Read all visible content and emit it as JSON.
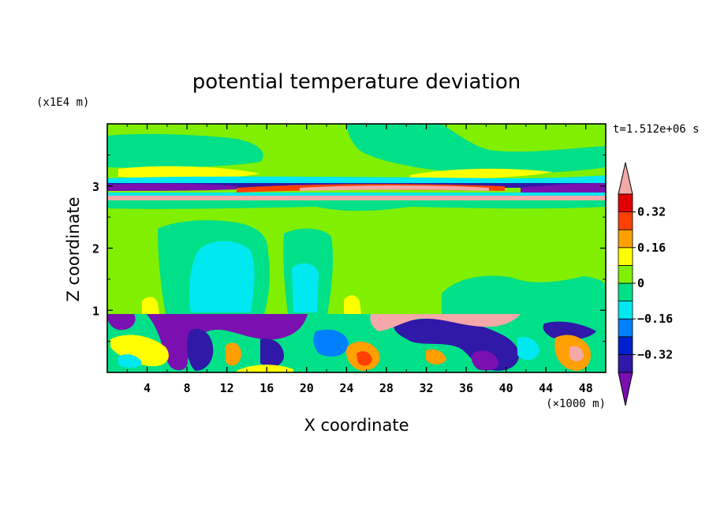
{
  "chart_data": {
    "type": "heatmap",
    "title": "potential temperature deviation",
    "xlabel": "X coordinate",
    "ylabel": "Z coordinate",
    "x_unit": "(×1000 m)",
    "y_unit": "(x1E4 m)",
    "time_label": "t=1.512e+06 s",
    "xlim": [
      0,
      50
    ],
    "ylim": [
      0,
      4
    ],
    "x_ticks": [
      4,
      8,
      12,
      16,
      20,
      24,
      28,
      32,
      36,
      40,
      44,
      48
    ],
    "y_ticks": [
      1,
      2,
      3
    ],
    "colorbar": {
      "levels": [
        -0.4,
        -0.32,
        -0.24,
        -0.16,
        -0.08,
        0,
        0.08,
        0.16,
        0.24,
        0.32,
        0.4
      ],
      "tick_labels": [
        "0.32",
        "0.16",
        "0",
        "−0.16",
        "−0.32"
      ],
      "colors": [
        "#7a10b0",
        "#3018a8",
        "#0020d0",
        "#0080ff",
        "#00e8f0",
        "#00e088",
        "#80f000",
        "#ffff00",
        "#ffa000",
        "#ff4000",
        "#e00000",
        "#f4a8a8"
      ],
      "extend": "both"
    }
  }
}
